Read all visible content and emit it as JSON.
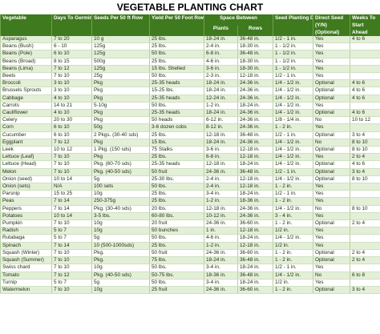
{
  "title": "VEGETABLE PLANTING CHART",
  "headers": {
    "vegetable": "Vegetable",
    "days": "Days To Germination",
    "seeds": "Seeds Per 50 ft Row",
    "yield": "Yield Per 50 Foot Row",
    "space": "Space Between",
    "plants": "Plants",
    "rows": "Rows",
    "depth": "Seed Planting Depth",
    "direct": "Direct Seed (Y/N) (Optional)",
    "weeks": "Weeks To Start Ahead"
  },
  "rows": [
    [
      "Asparagus",
      "7 to 20",
      "10 g",
      "25 lbs.",
      "18-24 in.",
      "36-48 in.",
      "1/2 - 1 in.",
      "Yes",
      "4 to 6"
    ],
    [
      "Beans (Bush)",
      "6 - 10",
      "125g",
      "25 lbs.",
      "2-4 in.",
      "18-30 in.",
      "1 - 1/2 in.",
      "Yes",
      ""
    ],
    [
      "Beans (Pole)",
      "6 to 10",
      "125g",
      "50 lbs.",
      "6-8 in.",
      "36-48 in.",
      "1 - 1/2 in.",
      "Yes",
      ""
    ],
    [
      "Beans (Broad)",
      "8 to 15",
      "500g",
      "25 lbs.",
      "4-6 in.",
      "18-30 in.",
      "1 - 1/2 in.",
      "Yes",
      ""
    ],
    [
      "Beans (Lima)",
      "7 to 12",
      "125g",
      "15 lbs. Shelled",
      "3-6 in.",
      "18-30 in.",
      "1 - 1/2 in.",
      "Yes",
      ""
    ],
    [
      "Beets",
      "7 to 10",
      "25g",
      "50 lbs.",
      "2-3 in.",
      "12-18 in.",
      "1/2 - 1 in.",
      "Yes",
      ""
    ],
    [
      "Broccoli",
      "3 to 10",
      "Pkg",
      "25-35 heads",
      "18-24 in.",
      "24-36 in.",
      "1/4 - 1/2 in.",
      "Optional",
      "4 to 6"
    ],
    [
      "Brussels Sprouts",
      "3 to 10",
      "Pkg",
      "15-25 lbs.",
      "18-24 in.",
      "24-36 in.",
      "1/4 - 1/2 in.",
      "Optional",
      "4 to 6"
    ],
    [
      "Cabbage",
      "4 to 10",
      "Pkg",
      "25-35 heads",
      "12-24 in.",
      "24-36 in.",
      "1/4 - 1/2 in.",
      "Optional",
      "4 to 6"
    ],
    [
      "Carrots",
      "14 to 21",
      "5-10g",
      "50 lbs.",
      "1-2 in.",
      "18-24 in.",
      "1/4 - 1/2 in.",
      "Yes",
      ""
    ],
    [
      "Cauliflower",
      "4 to 10",
      "Pkg",
      "25-35 heads",
      "18-24 in.",
      "24-36 in.",
      "1/4 - 1/2 in.",
      "Optional",
      "4 to 6"
    ],
    [
      "Celery",
      "20 to 30",
      "Pkg",
      "50 heads",
      "6-12 in.",
      "24-36 in.",
      "1/8 - 1/4 in.",
      "No",
      "10 to 12"
    ],
    [
      "Corn",
      "6 to 10",
      "50g",
      "3-6 dozen cobs",
      "8-12 in.",
      "24-36 in.",
      "1 - 2 in.",
      "Yes",
      ""
    ],
    [
      "Cucumber",
      "6 to 10",
      "2 Pkgs. (30-40 sds)",
      "25 lbs.",
      "12-18 in.",
      "36-48 in.",
      "1/2 - 1 in.",
      "Optional",
      "3 to 4"
    ],
    [
      "Eggplant",
      "7 to 12",
      "Pkg",
      "15 lbs.",
      "18-24 in.",
      "24-36 in.",
      "1/4 - 1/2 in.",
      "No",
      "8 to 10"
    ],
    [
      "Leek",
      "10 to 12",
      "1 Pkg. (150 sds)",
      "75 Stalks",
      "3-6 in.",
      "12-18 in.",
      "1/4 - 1/2 in.",
      "Optional",
      "8 to 10"
    ],
    [
      "Lettuce (Leaf)",
      "7 to 10",
      "Pkg",
      "25 lbs.",
      "6-8 in.",
      "12-18 in.",
      "1/4 - 1/2 in.",
      "Yes",
      "2 to 4"
    ],
    [
      "Lettuce (Head)",
      "7 to 10",
      "Pkg. (60-70 sds)",
      "25-35 heads",
      "12-18 in.",
      "18-24 in.",
      "1/4 - 1/2 in.",
      "Optional",
      "4 to 6"
    ],
    [
      "Melon",
      "7 to 10",
      "Pkg. (40-50 sds)",
      "50 fruit",
      "24-36 in.",
      "36-48 in.",
      "1/2 - 1 in.",
      "Optional",
      "3 to 4"
    ],
    [
      "Onion (seed)",
      "10 to 14",
      "5g",
      "25-30 lbs.",
      "2-4 in.",
      "12-18 in.",
      "1/4 - 1/2 in.",
      "Optional",
      "8 to 10"
    ],
    [
      "Onion (sets)",
      "N/A",
      "100 sets",
      "50 lbs.",
      "2-4 in.",
      "12-18 in.",
      "1 - 2 in.",
      "Yes",
      ""
    ],
    [
      "Parsnip",
      "15 to 25",
      "10g",
      "25 lbs.",
      "3-4 in.",
      "18-24 in.",
      "1/2 - 1 in.",
      "Yes",
      ""
    ],
    [
      "Peas",
      "7 to 14",
      "250-375g",
      "25 lbs.",
      "1-2 in.",
      "18-36 in.",
      "1 - 2 in.",
      "Yes",
      ""
    ],
    [
      "Peppers",
      "7 to 14",
      "Pkg. (30-40 sds)",
      "20 lbs.",
      "12-18 in.",
      "24-36 in.",
      "1/4 - 1/2 in.",
      "No",
      "8 to 10"
    ],
    [
      "Potatoes",
      "10 to 14",
      "3-5 lbs.",
      "60-80 lbs.",
      "10-12 in.",
      "24-36 in.",
      "3 - 4 in.",
      "Yes",
      ""
    ],
    [
      "Pumpkin",
      "7 to 10",
      "10g",
      "20 fruit",
      "24-36 in.",
      "36-60 in.",
      "1 - 2 in.",
      "Optional",
      "2 to 4"
    ],
    [
      "Radish",
      "5 to 7",
      "10g",
      "50 bunches",
      "1 in.",
      "12-18 in.",
      "1/2 in.",
      "Yes",
      ""
    ],
    [
      "Rutabaga",
      "5 to 7",
      "5g",
      "50 lbs.",
      "4-6 in.",
      "18-24 in.",
      "1/4 - 1/2 in.",
      "Yes",
      ""
    ],
    [
      "Spinach",
      "7 to 14",
      "10 (500-1000sds)",
      "25 lbs.",
      "1-2 in.",
      "12-18 in.",
      "1/2 in.",
      "Yes",
      ""
    ],
    [
      "Squash (Winter)",
      "7 to 10",
      "Pkg.",
      "50 fruit",
      "24-36 in.",
      "36-60 in.",
      "1 - 2 in.",
      "Optional",
      "2 to 4"
    ],
    [
      "Squash (Summer)",
      "7 to 10",
      "Pkg.",
      "75 lbs.",
      "18-24 in.",
      "36-48 in.",
      "1 - 2 in.",
      "Optional",
      "2 to 4"
    ],
    [
      "Swiss chard",
      "7 to 10",
      "10g",
      "50 lbs.",
      "3-4 in.",
      "18-24 in.",
      "1/2 - 1 in.",
      "Yes",
      ""
    ],
    [
      "Tomato",
      "7 to 12",
      "Pkg. (40-50 sds)",
      "50-75 lbs.",
      "18-36 in.",
      "36-48 in.",
      "1/4 - 1/2 in.",
      "No",
      "6 to 8"
    ],
    [
      "Turnip",
      "5 to 7",
      "5g",
      "50 lbs.",
      "3-4 in.",
      "18-24 in.",
      "1/2 in.",
      "Yes",
      ""
    ],
    [
      "Watermelon",
      "7 to 10",
      "10g",
      "25 fruit",
      "24-36 in.",
      "36-60 in.",
      "1 - 2 in.",
      "Optional",
      "3 to 4"
    ]
  ]
}
